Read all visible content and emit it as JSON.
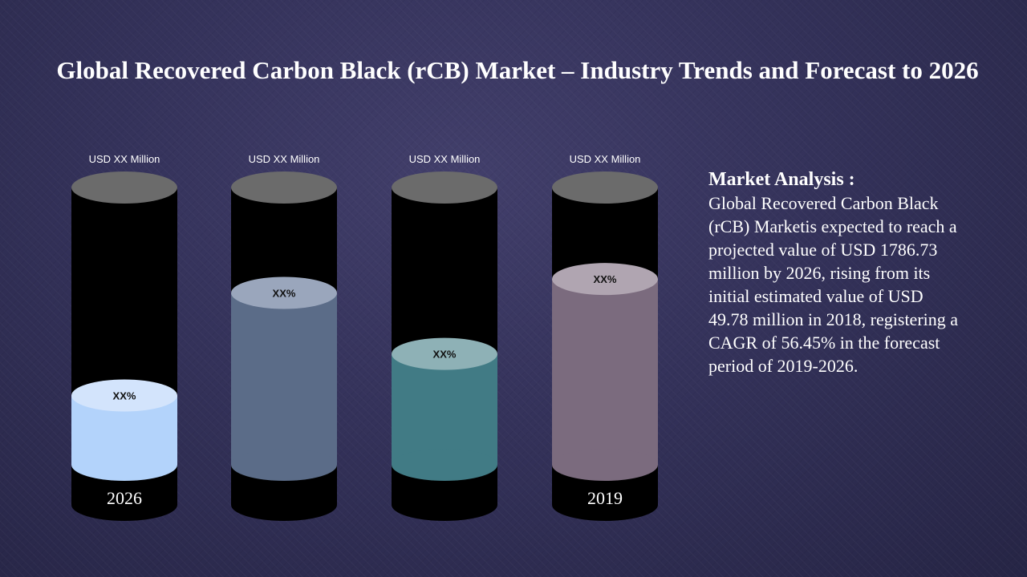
{
  "page": {
    "title": "Global Recovered Carbon Black (rCB) Market – Industry Trends and Forecast to 2026"
  },
  "analysis": {
    "heading": "Market Analysis :",
    "body": "Global Recovered Carbon Black (rCB) Marketis expected to reach a projected value of USD 1786.73 million by 2026, rising from its initial estimated value of USD 49.78 million in 2018, registering a CAGR of 56.45% in the forecast period of 2019-2026."
  },
  "colors": {
    "cylinder_body": "#000000",
    "cylinder_top": "#6b6b6b",
    "fills": [
      "#b3d3fb",
      "#5b6c88",
      "#417b85",
      "#7b6b7e"
    ],
    "fill_tops": [
      "#d3e4fc",
      "#9aa6bc",
      "#8eb1b6",
      "#b0a5b1"
    ]
  },
  "chart_data": {
    "type": "bar",
    "style": "cylinder",
    "title": "",
    "categories": [
      "2026",
      "",
      "",
      "2019"
    ],
    "value_labels": [
      "USD XX Million",
      "USD XX Million",
      "USD XX Million",
      "USD XX Million"
    ],
    "pct_labels": [
      "XX%",
      "XX%",
      "XX%",
      "XX%"
    ],
    "fill_fraction": [
      0.25,
      0.62,
      0.4,
      0.67
    ],
    "ylim": [
      0,
      1
    ]
  }
}
